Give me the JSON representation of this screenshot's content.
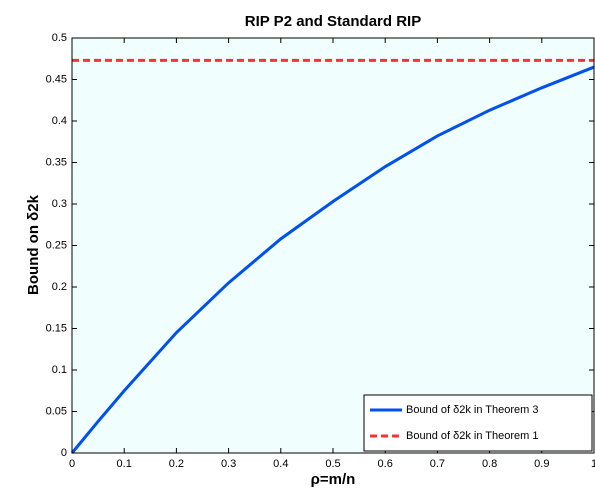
{
  "chart_data": {
    "type": "line",
    "title": "RIP P2 and Standard RIP",
    "xlabel": "ρ=m/n",
    "ylabel": "Bound on δ2k",
    "xlim": [
      0,
      1
    ],
    "ylim": [
      0,
      0.5
    ],
    "xticks": [
      0,
      0.1,
      0.2,
      0.3,
      0.4,
      0.5,
      0.6,
      0.7,
      0.8,
      0.9,
      1
    ],
    "yticks": [
      0,
      0.05,
      0.1,
      0.15,
      0.2,
      0.25,
      0.3,
      0.35,
      0.4,
      0.45,
      0.5
    ],
    "grid": false,
    "legend": "lower right",
    "background": "#f0fefe",
    "series": [
      {
        "name": "Bound of δ2k in Theorem 3",
        "color": "#0050ee",
        "style": "solid",
        "x": [
          0,
          0.05,
          0.1,
          0.2,
          0.3,
          0.4,
          0.5,
          0.6,
          0.7,
          0.8,
          0.9,
          1
        ],
        "values": [
          0,
          0.038,
          0.075,
          0.145,
          0.205,
          0.258,
          0.303,
          0.345,
          0.382,
          0.413,
          0.44,
          0.465
        ]
      },
      {
        "name": "Bound of δ2k in Theorem 1",
        "color": "#ff3030",
        "style": "dashed",
        "x": [
          0,
          1
        ],
        "values": [
          0.4731,
          0.4731
        ]
      }
    ]
  }
}
